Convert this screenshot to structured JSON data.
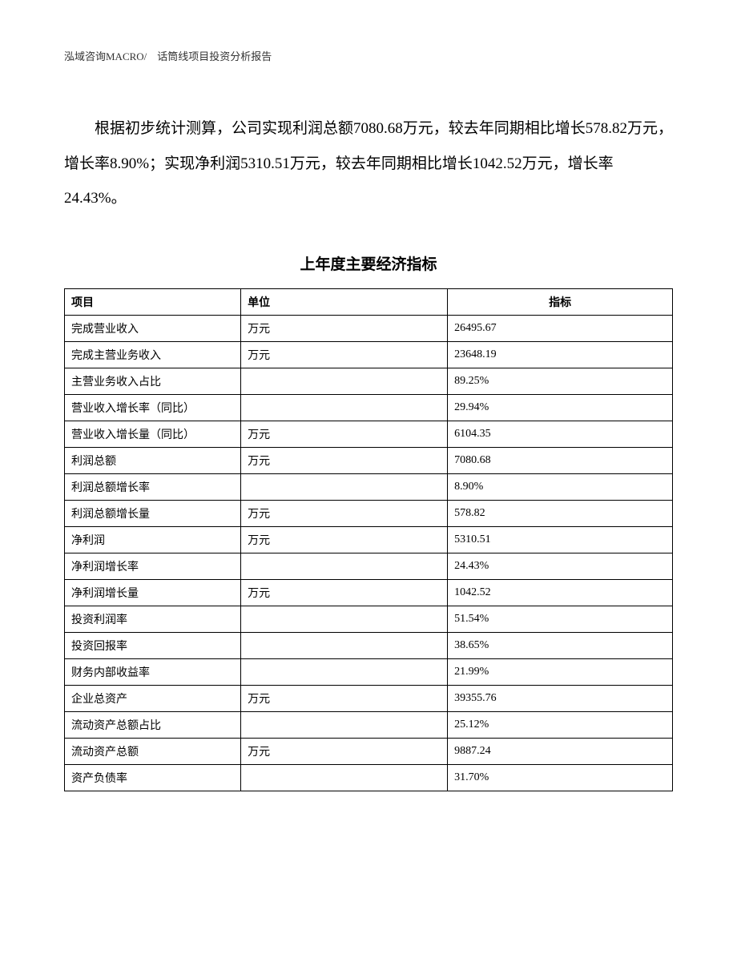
{
  "header": "泓域咨询MACRO/　话筒线项目投资分析报告",
  "paragraph": "根据初步统计测算，公司实现利润总额7080.68万元，较去年同期相比增长578.82万元，增长率8.90%；实现净利润5310.51万元，较去年同期相比增长1042.52万元，增长率24.43%。",
  "table": {
    "title": "上年度主要经济指标",
    "columns": [
      "项目",
      "单位",
      "指标"
    ],
    "rows": [
      [
        "完成营业收入",
        "万元",
        "26495.67"
      ],
      [
        "完成主营业务收入",
        "万元",
        "23648.19"
      ],
      [
        "主营业务收入占比",
        "",
        "89.25%"
      ],
      [
        "营业收入增长率（同比）",
        "",
        "29.94%"
      ],
      [
        "营业收入增长量（同比）",
        "万元",
        "6104.35"
      ],
      [
        "利润总额",
        "万元",
        "7080.68"
      ],
      [
        "利润总额增长率",
        "",
        "8.90%"
      ],
      [
        "利润总额增长量",
        "万元",
        "578.82"
      ],
      [
        "净利润",
        "万元",
        "5310.51"
      ],
      [
        "净利润增长率",
        "",
        "24.43%"
      ],
      [
        "净利润增长量",
        "万元",
        "1042.52"
      ],
      [
        "投资利润率",
        "",
        "51.54%"
      ],
      [
        "投资回报率",
        "",
        "38.65%"
      ],
      [
        "财务内部收益率",
        "",
        "21.99%"
      ],
      [
        "企业总资产",
        "万元",
        "39355.76"
      ],
      [
        "流动资产总额占比",
        "",
        "25.12%"
      ],
      [
        "流动资产总额",
        "万元",
        "9887.24"
      ],
      [
        "资产负债率",
        "",
        "31.70%"
      ]
    ]
  }
}
